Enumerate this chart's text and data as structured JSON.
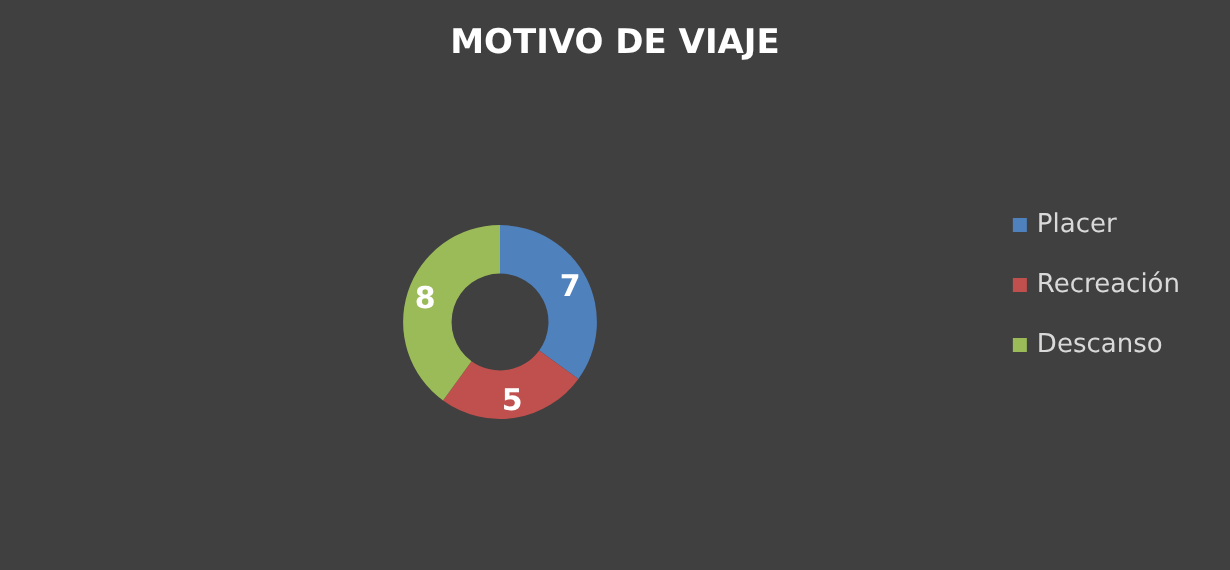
{
  "chart_data": {
    "type": "donut",
    "title": "MOTIVO DE VIAJE",
    "categories": [
      "Placer",
      "Recreación",
      "Descanso"
    ],
    "values": [
      7,
      5,
      8
    ],
    "colors": [
      "#4f81bd",
      "#c0504d",
      "#9bbb59"
    ],
    "data_labels": true,
    "legend": "right"
  }
}
